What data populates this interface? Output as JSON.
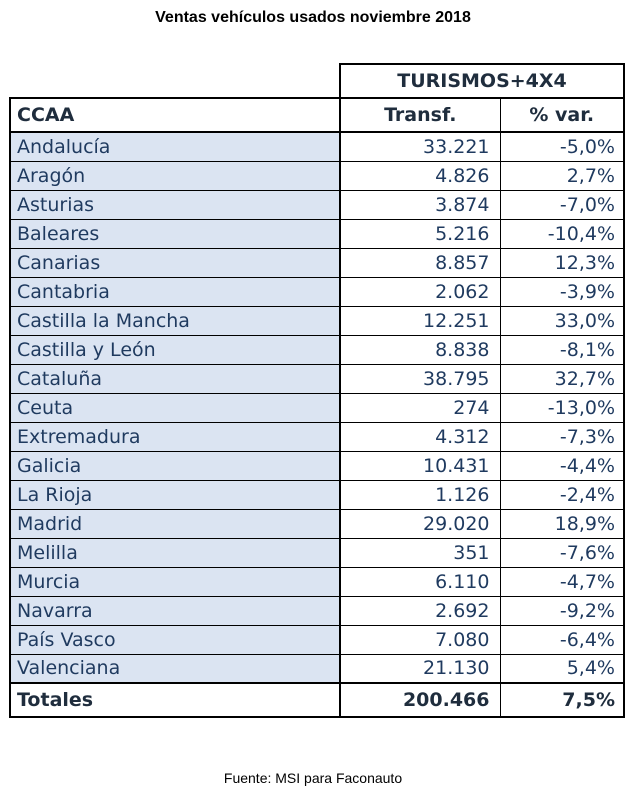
{
  "title": "Ventas vehículos usados noviembre 2018",
  "group_header": "TURISMOS+4X4",
  "columns": [
    "CCAA",
    "Transf.",
    "% var."
  ],
  "rows": [
    {
      "ccaa": "Andalucía",
      "transf": "33.221",
      "var": "-5,0%"
    },
    {
      "ccaa": "Aragón",
      "transf": "4.826",
      "var": "2,7%"
    },
    {
      "ccaa": "Asturias",
      "transf": "3.874",
      "var": "-7,0%"
    },
    {
      "ccaa": "Baleares",
      "transf": "5.216",
      "var": "-10,4%"
    },
    {
      "ccaa": "Canarias",
      "transf": "8.857",
      "var": "12,3%"
    },
    {
      "ccaa": "Cantabria",
      "transf": "2.062",
      "var": "-3,9%"
    },
    {
      "ccaa": "Castilla la Mancha",
      "transf": "12.251",
      "var": "33,0%"
    },
    {
      "ccaa": "Castilla y León",
      "transf": "8.838",
      "var": "-8,1%"
    },
    {
      "ccaa": "Cataluña",
      "transf": "38.795",
      "var": "32,7%"
    },
    {
      "ccaa": "Ceuta",
      "transf": "274",
      "var": "-13,0%"
    },
    {
      "ccaa": "Extremadura",
      "transf": "4.312",
      "var": "-7,3%"
    },
    {
      "ccaa": "Galicia",
      "transf": "10.431",
      "var": "-4,4%"
    },
    {
      "ccaa": "La Rioja",
      "transf": "1.126",
      "var": "-2,4%"
    },
    {
      "ccaa": "Madrid",
      "transf": "29.020",
      "var": "18,9%"
    },
    {
      "ccaa": "Melilla",
      "transf": "351",
      "var": "-7,6%"
    },
    {
      "ccaa": "Murcia",
      "transf": "6.110",
      "var": "-4,7%"
    },
    {
      "ccaa": "Navarra",
      "transf": "2.692",
      "var": "-9,2%"
    },
    {
      "ccaa": "País Vasco",
      "transf": "7.080",
      "var": "-6,4%"
    },
    {
      "ccaa": "Valenciana",
      "transf": "21.130",
      "var": "5,4%"
    }
  ],
  "totals": {
    "label": "Totales",
    "transf": "200.466",
    "var": "7,5%"
  },
  "source": "Fuente: MSI para Faconauto"
}
